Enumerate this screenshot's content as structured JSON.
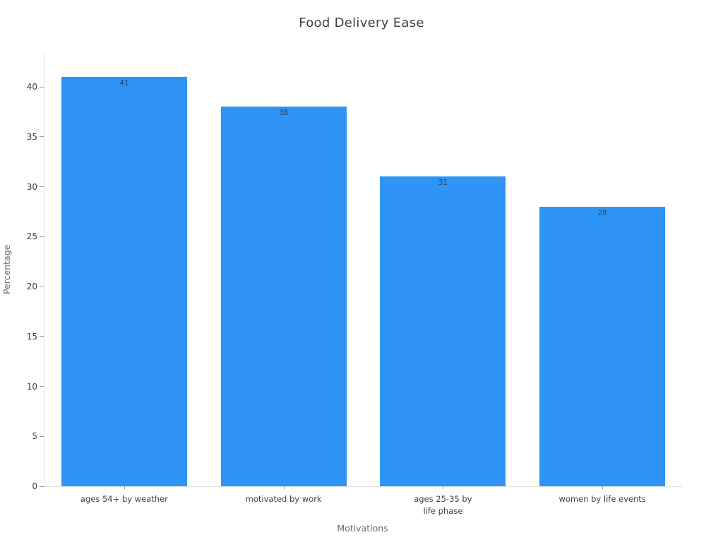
{
  "title": "Food Delivery Ease",
  "chart_data": {
    "type": "bar",
    "title": "Food Delivery Ease",
    "xlabel": "Motivations",
    "ylabel": "Percentage",
    "categories": [
      "ages 54+ by weather",
      "motivated by work",
      "ages 25-35 by\nlife phase",
      "women by life events"
    ],
    "values": [
      41,
      38,
      31,
      28
    ],
    "value_labels": [
      "41",
      "38",
      "31",
      "28"
    ],
    "yticks": [
      0,
      5,
      10,
      15,
      20,
      25,
      30,
      35,
      40
    ],
    "ylim": [
      0,
      43.4
    ],
    "grid": false,
    "legend_position": "none",
    "bar_color": "#2E94F5",
    "value_label_color": "#2a3f5f"
  },
  "colors": {
    "axis_line": "#e2e2e2",
    "tick_mark": "#9b9b9b",
    "tick_label": "#404040",
    "axis_title": "#6b6b6b",
    "chart_title": "#3c4248",
    "background": "#ffffff"
  }
}
